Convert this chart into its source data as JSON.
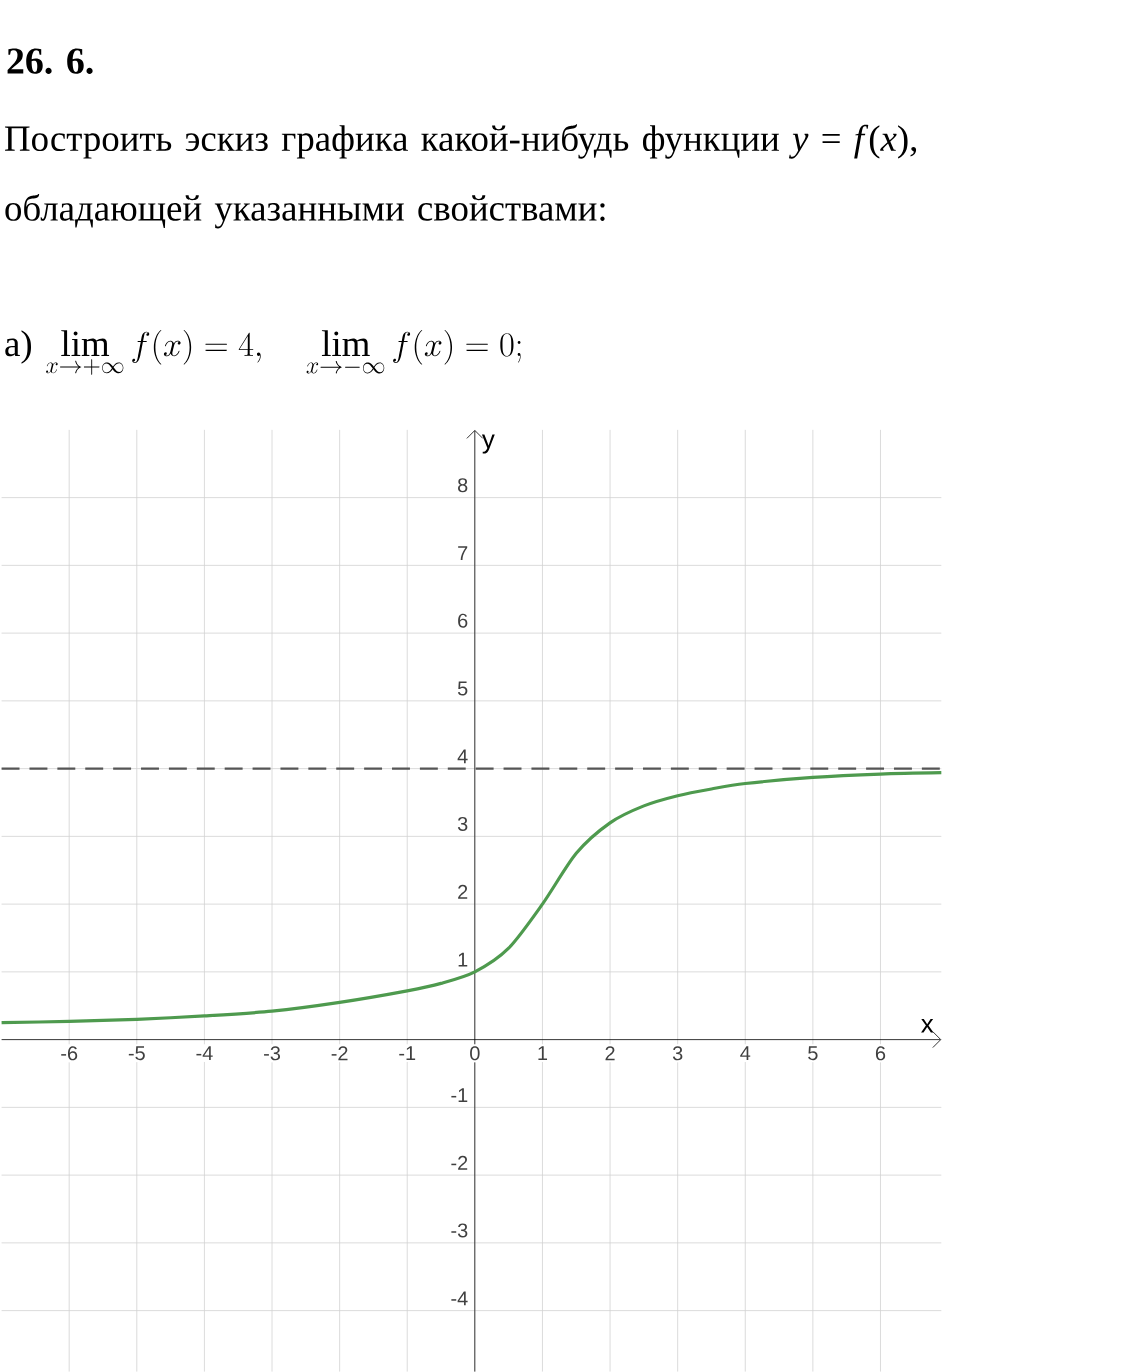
{
  "chart_data": {
    "type": "line",
    "title": "26. 6.",
    "subtitle": "Построить эскиз графика какой-нибудь функции *y* = *f*(*x*), обладающей указанными свойствами:",
    "annotations": [
      "а)",
      "\\lim_{x\\to+\\infty} f(x)=4,\\quad \\lim_{x\\to-\\infty} f(x)=0;"
    ],
    "xlabel": "x",
    "ylabel": "y",
    "series": [
      {
        "color": "#4e9a4e",
        "x": [
          -7,
          -6,
          -5,
          -4,
          -3,
          -2,
          -1,
          -0.5,
          0,
          0.5,
          1,
          1.5,
          2,
          2.5,
          3,
          3.5,
          4,
          5,
          6,
          6.9
        ],
        "values": [
          0.25,
          0.27,
          0.3,
          0.35,
          0.42,
          0.55,
          0.72,
          0.83,
          1.0,
          1.35,
          2.0,
          2.75,
          3.2,
          3.45,
          3.6,
          3.7,
          3.78,
          3.87,
          3.92,
          3.94
        ]
      }
    ],
    "ref_lines": [
      {
        "axis": "y",
        "value": 4,
        "color": "#555555",
        "line_style": "dashed"
      }
    ],
    "xlim": [
      -7,
      6.9
    ],
    "ylim": [
      -4.9,
      9
    ],
    "xticks": [
      -6,
      -5,
      -4,
      -3,
      -2,
      -1,
      0,
      1,
      2,
      3,
      4,
      5,
      6
    ],
    "yticks": [
      -4,
      -3,
      -2,
      -1,
      1,
      2,
      3,
      4,
      5,
      6,
      7,
      8
    ],
    "grid": true,
    "marker": "none",
    "line_style": "solid"
  }
}
